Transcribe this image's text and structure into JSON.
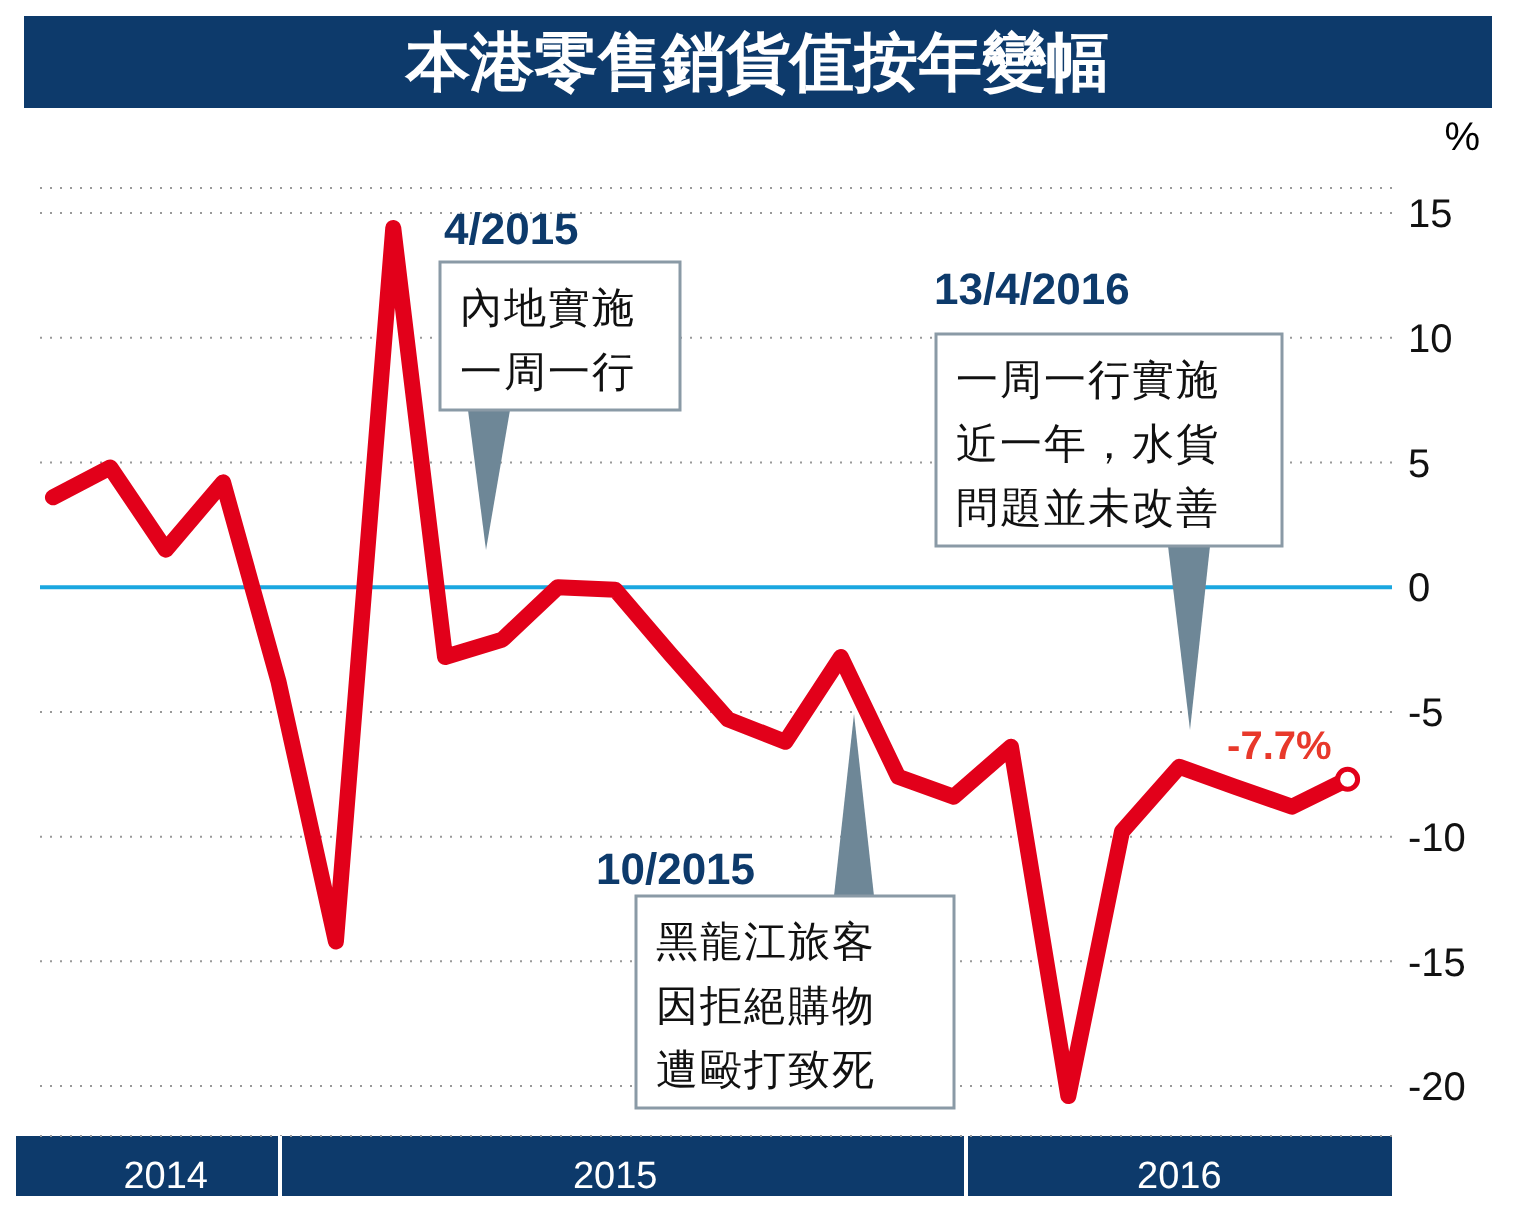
{
  "chart_data": {
    "type": "line",
    "title": "本港零售銷貨值按年變幅",
    "ylabel": "%",
    "x": [
      "2014-08",
      "2014-09",
      "2014-10",
      "2014-11",
      "2014-12",
      "2015-01",
      "2015-02",
      "2015-03",
      "2015-04",
      "2015-05",
      "2015-06",
      "2015-07",
      "2015-08",
      "2015-09",
      "2015-10",
      "2015-11",
      "2015-12",
      "2016-01",
      "2016-02",
      "2016-03",
      "2016-04",
      "2016-05",
      "2016-06",
      "2016-07"
    ],
    "series": [
      {
        "color": "#e2001a",
        "values": [
          3.6,
          4.8,
          1.5,
          4.2,
          -3.8,
          -14.2,
          14.4,
          -2.8,
          -2.1,
          0,
          -0.1,
          -2.7,
          -5.3,
          -6.2,
          -2.8,
          -7.6,
          -8.4,
          -6.4,
          -20.4,
          -9.8,
          -7.2,
          -8.0,
          -8.8,
          -7.7
        ]
      }
    ],
    "xlim": [
      "2014-07-25",
      "2016-07-25"
    ],
    "xticks": [
      {
        "value": "2014-10",
        "label": "2014"
      },
      {
        "value": "2015-06",
        "label": "2015"
      },
      {
        "value": "2016-04",
        "label": "2016"
      }
    ],
    "ylim": [
      -22,
      16
    ],
    "yticks": [
      15,
      10,
      5,
      0,
      -5,
      -10,
      -15,
      -20
    ],
    "grid": "y",
    "marker": "none",
    "line_style": "solid",
    "ref_lines": [
      {
        "axis": "y",
        "value": 0,
        "color": "#1aa7e0"
      }
    ],
    "annotations": [
      "4/2015",
      "內地實施一周一行",
      "10/2015",
      "黑龍江旅客因拒絕購物遭毆打致死",
      "13/4/2016",
      "一周一行實施近一年，水貨問題並未改善",
      {
        "text": "-7.7%",
        "x": "2016-07",
        "y": -7.7
      }
    ]
  }
}
